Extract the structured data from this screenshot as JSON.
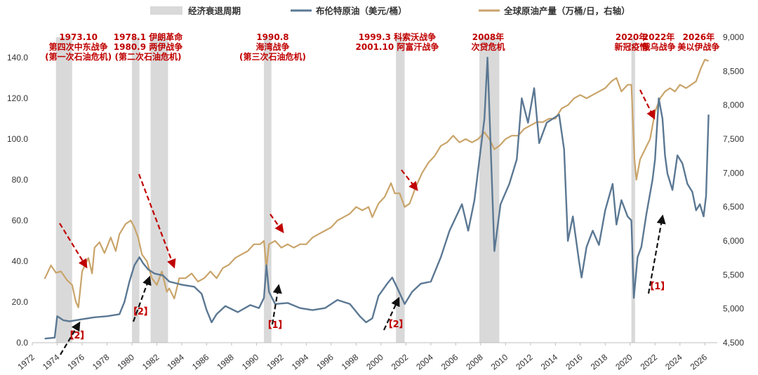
{
  "chart_data": {
    "type": "line",
    "legend": [
      {
        "name": "经济衰退周期",
        "kind": "recession",
        "color": "#d9d9d9"
      },
      {
        "name": "布伦特原油（美元/桶）",
        "kind": "brent",
        "color": "#5b7893"
      },
      {
        "name": "全球原油产量（万桶/日，右轴）",
        "kind": "production",
        "color": "#c9a46a"
      }
    ],
    "x_range": [
      1972,
      2027
    ],
    "x_ticks": [
      "1972",
      "1974",
      "1976",
      "1978",
      "1980",
      "1982",
      "1984",
      "1986",
      "1988",
      "1990",
      "1992",
      "1994",
      "1996",
      "1998",
      "2000",
      "2002",
      "2004",
      "2006",
      "2008",
      "2010",
      "2012",
      "2014",
      "2016",
      "2018",
      "2020",
      "2022",
      "2024",
      "2026"
    ],
    "y_left": {
      "min": 0,
      "max": 150,
      "ticks": [
        "0.0",
        "20.0",
        "40.0",
        "60.0",
        "80.0",
        "100.0",
        "120.0",
        "140.0"
      ]
    },
    "y_right": {
      "min": 4500,
      "max": 9000,
      "ticks": [
        "4,500",
        "5,000",
        "5,500",
        "6,000",
        "6,500",
        "7,000",
        "7,500",
        "8,000",
        "8,500",
        "9,000"
      ]
    },
    "recessions": [
      [
        1973.9,
        1975.2
      ],
      [
        1980.0,
        1980.6
      ],
      [
        1981.5,
        1982.9
      ],
      [
        1990.6,
        1991.2
      ],
      [
        2001.2,
        2001.9
      ],
      [
        2007.9,
        2009.5
      ],
      [
        2020.1,
        2020.4
      ]
    ],
    "brent": [
      [
        1973.0,
        2.0
      ],
      [
        1973.8,
        2.5
      ],
      [
        1974.0,
        13.0
      ],
      [
        1974.5,
        11.0
      ],
      [
        1975.0,
        10.5
      ],
      [
        1976.0,
        11.5
      ],
      [
        1977.0,
        12.5
      ],
      [
        1978.0,
        13.0
      ],
      [
        1979.0,
        14.0
      ],
      [
        1979.4,
        20.0
      ],
      [
        1979.8,
        30.0
      ],
      [
        1980.2,
        38.0
      ],
      [
        1980.6,
        42.0
      ],
      [
        1980.9,
        39.0
      ],
      [
        1981.3,
        36.0
      ],
      [
        1981.8,
        34.0
      ],
      [
        1982.5,
        33.0
      ],
      [
        1983.0,
        30.0
      ],
      [
        1984.0,
        28.5
      ],
      [
        1985.0,
        27.5
      ],
      [
        1985.6,
        24.0
      ],
      [
        1986.0,
        16.0
      ],
      [
        1986.4,
        10.0
      ],
      [
        1986.8,
        14.0
      ],
      [
        1987.5,
        18.0
      ],
      [
        1988.5,
        15.0
      ],
      [
        1989.5,
        18.5
      ],
      [
        1990.2,
        17.0
      ],
      [
        1990.6,
        22.0
      ],
      [
        1990.8,
        38.0
      ],
      [
        1991.0,
        25.0
      ],
      [
        1991.5,
        19.0
      ],
      [
        1992.5,
        19.5
      ],
      [
        1993.5,
        17.0
      ],
      [
        1994.5,
        16.0
      ],
      [
        1995.5,
        17.0
      ],
      [
        1996.5,
        21.0
      ],
      [
        1997.5,
        19.0
      ],
      [
        1998.3,
        13.0
      ],
      [
        1998.8,
        10.0
      ],
      [
        1999.3,
        12.0
      ],
      [
        1999.8,
        23.0
      ],
      [
        2000.5,
        29.0
      ],
      [
        2000.9,
        32.0
      ],
      [
        2001.3,
        27.0
      ],
      [
        2001.9,
        19.0
      ],
      [
        2002.5,
        25.0
      ],
      [
        2003.2,
        29.0
      ],
      [
        2004.0,
        30.0
      ],
      [
        2004.8,
        42.0
      ],
      [
        2005.5,
        55.0
      ],
      [
        2006.5,
        68.0
      ],
      [
        2007.0,
        55.0
      ],
      [
        2007.5,
        70.0
      ],
      [
        2007.9,
        90.0
      ],
      [
        2008.3,
        110.0
      ],
      [
        2008.55,
        140.0
      ],
      [
        2008.9,
        80.0
      ],
      [
        2009.1,
        45.0
      ],
      [
        2009.6,
        68.0
      ],
      [
        2010.3,
        78.0
      ],
      [
        2010.9,
        90.0
      ],
      [
        2011.3,
        120.0
      ],
      [
        2011.8,
        108.0
      ],
      [
        2012.3,
        125.0
      ],
      [
        2012.7,
        98.0
      ],
      [
        2013.3,
        108.0
      ],
      [
        2013.8,
        110.0
      ],
      [
        2014.3,
        112.0
      ],
      [
        2014.7,
        95.0
      ],
      [
        2015.0,
        50.0
      ],
      [
        2015.4,
        62.0
      ],
      [
        2015.9,
        40.0
      ],
      [
        2016.1,
        32.0
      ],
      [
        2016.5,
        47.0
      ],
      [
        2017.0,
        55.0
      ],
      [
        2017.5,
        48.0
      ],
      [
        2018.0,
        65.0
      ],
      [
        2018.6,
        78.0
      ],
      [
        2018.9,
        58.0
      ],
      [
        2019.3,
        70.0
      ],
      [
        2019.8,
        62.0
      ],
      [
        2020.1,
        60.0
      ],
      [
        2020.3,
        22.0
      ],
      [
        2020.6,
        42.0
      ],
      [
        2020.9,
        47.0
      ],
      [
        2021.3,
        63.0
      ],
      [
        2021.8,
        80.0
      ],
      [
        2022.0,
        90.0
      ],
      [
        2022.3,
        120.0
      ],
      [
        2022.6,
        110.0
      ],
      [
        2022.8,
        92.0
      ],
      [
        2023.0,
        83.0
      ],
      [
        2023.4,
        75.0
      ],
      [
        2023.8,
        92.0
      ],
      [
        2024.2,
        88.0
      ],
      [
        2024.6,
        78.0
      ],
      [
        2025.0,
        74.0
      ],
      [
        2025.3,
        65.0
      ],
      [
        2025.6,
        68.0
      ],
      [
        2025.9,
        62.0
      ],
      [
        2026.1,
        72.0
      ],
      [
        2026.3,
        112.0
      ]
    ],
    "production": [
      [
        1973.0,
        5440
      ],
      [
        1973.5,
        5640
      ],
      [
        1973.9,
        5530
      ],
      [
        1974.3,
        5550
      ],
      [
        1974.8,
        5420
      ],
      [
        1975.2,
        5350
      ],
      [
        1975.5,
        5100
      ],
      [
        1975.7,
        5020
      ],
      [
        1976.0,
        5550
      ],
      [
        1976.5,
        5750
      ],
      [
        1976.8,
        5520
      ],
      [
        1977.0,
        5900
      ],
      [
        1977.4,
        5980
      ],
      [
        1977.8,
        5820
      ],
      [
        1978.3,
        6050
      ],
      [
        1978.7,
        5850
      ],
      [
        1979.0,
        6100
      ],
      [
        1979.5,
        6250
      ],
      [
        1979.9,
        6300
      ],
      [
        1980.2,
        6200
      ],
      [
        1980.5,
        6050
      ],
      [
        1980.8,
        5800
      ],
      [
        1981.2,
        5700
      ],
      [
        1981.6,
        5450
      ],
      [
        1982.0,
        5350
      ],
      [
        1982.4,
        5550
      ],
      [
        1982.8,
        5250
      ],
      [
        1983.0,
        5300
      ],
      [
        1983.4,
        5150
      ],
      [
        1983.8,
        5450
      ],
      [
        1984.3,
        5450
      ],
      [
        1984.8,
        5520
      ],
      [
        1985.3,
        5400
      ],
      [
        1985.8,
        5450
      ],
      [
        1986.3,
        5550
      ],
      [
        1986.8,
        5450
      ],
      [
        1987.3,
        5600
      ],
      [
        1987.8,
        5650
      ],
      [
        1988.3,
        5750
      ],
      [
        1988.8,
        5800
      ],
      [
        1989.3,
        5850
      ],
      [
        1989.8,
        5950
      ],
      [
        1990.3,
        5950
      ],
      [
        1990.6,
        6000
      ],
      [
        1990.8,
        5600
      ],
      [
        1991.0,
        5950
      ],
      [
        1991.5,
        6000
      ],
      [
        1992.0,
        5900
      ],
      [
        1992.5,
        5950
      ],
      [
        1993.0,
        5900
      ],
      [
        1993.5,
        5950
      ],
      [
        1994.0,
        5950
      ],
      [
        1994.5,
        6050
      ],
      [
        1995.0,
        6100
      ],
      [
        1995.5,
        6150
      ],
      [
        1996.0,
        6200
      ],
      [
        1996.5,
        6300
      ],
      [
        1997.0,
        6350
      ],
      [
        1997.5,
        6400
      ],
      [
        1998.0,
        6500
      ],
      [
        1998.5,
        6450
      ],
      [
        1999.0,
        6500
      ],
      [
        1999.3,
        6350
      ],
      [
        1999.8,
        6550
      ],
      [
        2000.3,
        6650
      ],
      [
        2000.8,
        6850
      ],
      [
        2001.1,
        6700
      ],
      [
        2001.5,
        6700
      ],
      [
        2001.9,
        6500
      ],
      [
        2002.3,
        6550
      ],
      [
        2002.8,
        6800
      ],
      [
        2003.3,
        7000
      ],
      [
        2003.8,
        7150
      ],
      [
        2004.3,
        7250
      ],
      [
        2004.8,
        7400
      ],
      [
        2005.3,
        7450
      ],
      [
        2005.8,
        7550
      ],
      [
        2006.3,
        7450
      ],
      [
        2006.8,
        7500
      ],
      [
        2007.3,
        7450
      ],
      [
        2007.8,
        7500
      ],
      [
        2008.3,
        7600
      ],
      [
        2008.7,
        7500
      ],
      [
        2009.1,
        7350
      ],
      [
        2009.5,
        7400
      ],
      [
        2010.0,
        7500
      ],
      [
        2010.5,
        7550
      ],
      [
        2011.0,
        7550
      ],
      [
        2011.5,
        7650
      ],
      [
        2012.0,
        7700
      ],
      [
        2012.5,
        7750
      ],
      [
        2013.0,
        7750
      ],
      [
        2013.5,
        7800
      ],
      [
        2014.0,
        7800
      ],
      [
        2014.5,
        7950
      ],
      [
        2015.0,
        8000
      ],
      [
        2015.5,
        8100
      ],
      [
        2016.0,
        8150
      ],
      [
        2016.5,
        8100
      ],
      [
        2017.0,
        8150
      ],
      [
        2017.5,
        8200
      ],
      [
        2018.0,
        8250
      ],
      [
        2018.5,
        8350
      ],
      [
        2018.9,
        8400
      ],
      [
        2019.3,
        8200
      ],
      [
        2019.8,
        8300
      ],
      [
        2020.1,
        8300
      ],
      [
        2020.35,
        7200
      ],
      [
        2020.5,
        6900
      ],
      [
        2020.8,
        7200
      ],
      [
        2021.2,
        7350
      ],
      [
        2021.6,
        7500
      ],
      [
        2022.0,
        7900
      ],
      [
        2022.4,
        8100
      ],
      [
        2022.8,
        8200
      ],
      [
        2023.2,
        8250
      ],
      [
        2023.6,
        8200
      ],
      [
        2024.0,
        8300
      ],
      [
        2024.5,
        8250
      ],
      [
        2024.9,
        8300
      ],
      [
        2025.3,
        8350
      ],
      [
        2025.7,
        8550
      ],
      [
        2026.0,
        8670
      ],
      [
        2026.3,
        8650
      ]
    ],
    "annotations": [
      {
        "lines": [
          "1973.10",
          "第四次中东战争",
          "(第一次石油危机)"
        ],
        "year": 1975.7
      },
      {
        "lines": [
          "1978.1 伊朗革命",
          "1980.9 两伊战争",
          "(第二次石油危机)"
        ],
        "year": 1981.3
      },
      {
        "lines": [
          "1990.8",
          "海湾战争",
          "(第三次石油危机)"
        ],
        "year": 1991.3
      },
      {
        "lines": [
          "1999.3 科索沃战争",
          "2001.10 阿富汗战争"
        ],
        "year": 2001.3
      },
      {
        "lines": [
          "2008年",
          "次贷危机"
        ],
        "year": 2008.6
      },
      {
        "lines": [
          "2020年",
          "新冠疫情"
        ],
        "year": 2020.1
      },
      {
        "lines": [
          "2022年",
          "俄乌战争"
        ],
        "year": 2022.3
      },
      {
        "lines": [
          "2026年",
          "美以伊战争"
        ],
        "year": 2025.5
      }
    ],
    "brackets": [
      {
        "label": "【2】",
        "year": 1975.6
      },
      {
        "label": "【2】",
        "year": 1980.7
      },
      {
        "label": "【1】",
        "year": 1991.5
      },
      {
        "label": "【2】",
        "year": 2001.2
      },
      {
        "label": "【1】",
        "year": 2022.2
      }
    ]
  }
}
